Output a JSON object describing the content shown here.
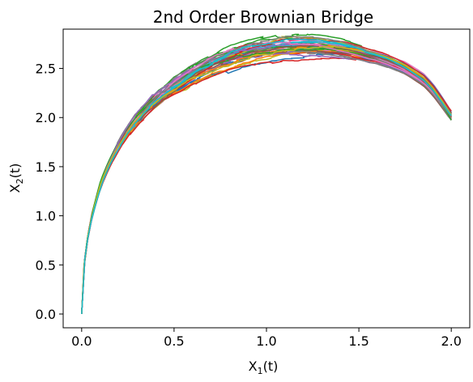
{
  "chart_data": {
    "type": "line",
    "title": "2nd Order Brownian Bridge",
    "xlabel": {
      "base": "X",
      "sub": "1",
      "suffix": "(t)"
    },
    "ylabel": {
      "base": "X",
      "sub": "2",
      "suffix": "(t)"
    },
    "xlim": [
      -0.1,
      2.1
    ],
    "ylim": [
      -0.14,
      2.9
    ],
    "xticks": [
      0.0,
      0.5,
      1.0,
      1.5,
      2.0
    ],
    "xtick_labels": [
      "0.0",
      "0.5",
      "1.0",
      "1.5",
      "2.0"
    ],
    "yticks": [
      0.0,
      0.5,
      1.0,
      1.5,
      2.0,
      2.5
    ],
    "ytick_labels": [
      "0.0",
      "0.5",
      "1.0",
      "1.5",
      "2.0",
      "2.5"
    ],
    "grid": false,
    "legend": "none",
    "colors": [
      "#1f77b4",
      "#ff7f0e",
      "#2ca02c",
      "#d62728",
      "#9467bd",
      "#8c564b",
      "#e377c2",
      "#7f7f7f",
      "#bcbd22",
      "#17becf"
    ],
    "mean_path": {
      "x": [
        0.0,
        0.005,
        0.01,
        0.02,
        0.04,
        0.06,
        0.08,
        0.1,
        0.13,
        0.16,
        0.2,
        0.25,
        0.3,
        0.35,
        0.4,
        0.45,
        0.5,
        0.55,
        0.6,
        0.65,
        0.7,
        0.75,
        0.8,
        0.85,
        0.9,
        0.95,
        1.0,
        1.05,
        1.1,
        1.15,
        1.2,
        1.25,
        1.3,
        1.35,
        1.4,
        1.45,
        1.5,
        1.55,
        1.6,
        1.65,
        1.7,
        1.75,
        1.8,
        1.85,
        1.9,
        1.95,
        2.0
      ],
      "y": [
        0.0,
        0.25,
        0.42,
        0.62,
        0.86,
        1.03,
        1.17,
        1.3,
        1.45,
        1.57,
        1.72,
        1.87,
        1.99,
        2.09,
        2.18,
        2.26,
        2.33,
        2.39,
        2.45,
        2.5,
        2.54,
        2.58,
        2.61,
        2.64,
        2.66,
        2.68,
        2.69,
        2.71,
        2.72,
        2.72,
        2.72,
        2.72,
        2.71,
        2.7,
        2.69,
        2.67,
        2.65,
        2.62,
        2.6,
        2.57,
        2.53,
        2.49,
        2.43,
        2.37,
        2.27,
        2.14,
        2.0
      ]
    },
    "num_paths": 40,
    "endpoint_range": [
      1.97,
      2.07
    ]
  }
}
